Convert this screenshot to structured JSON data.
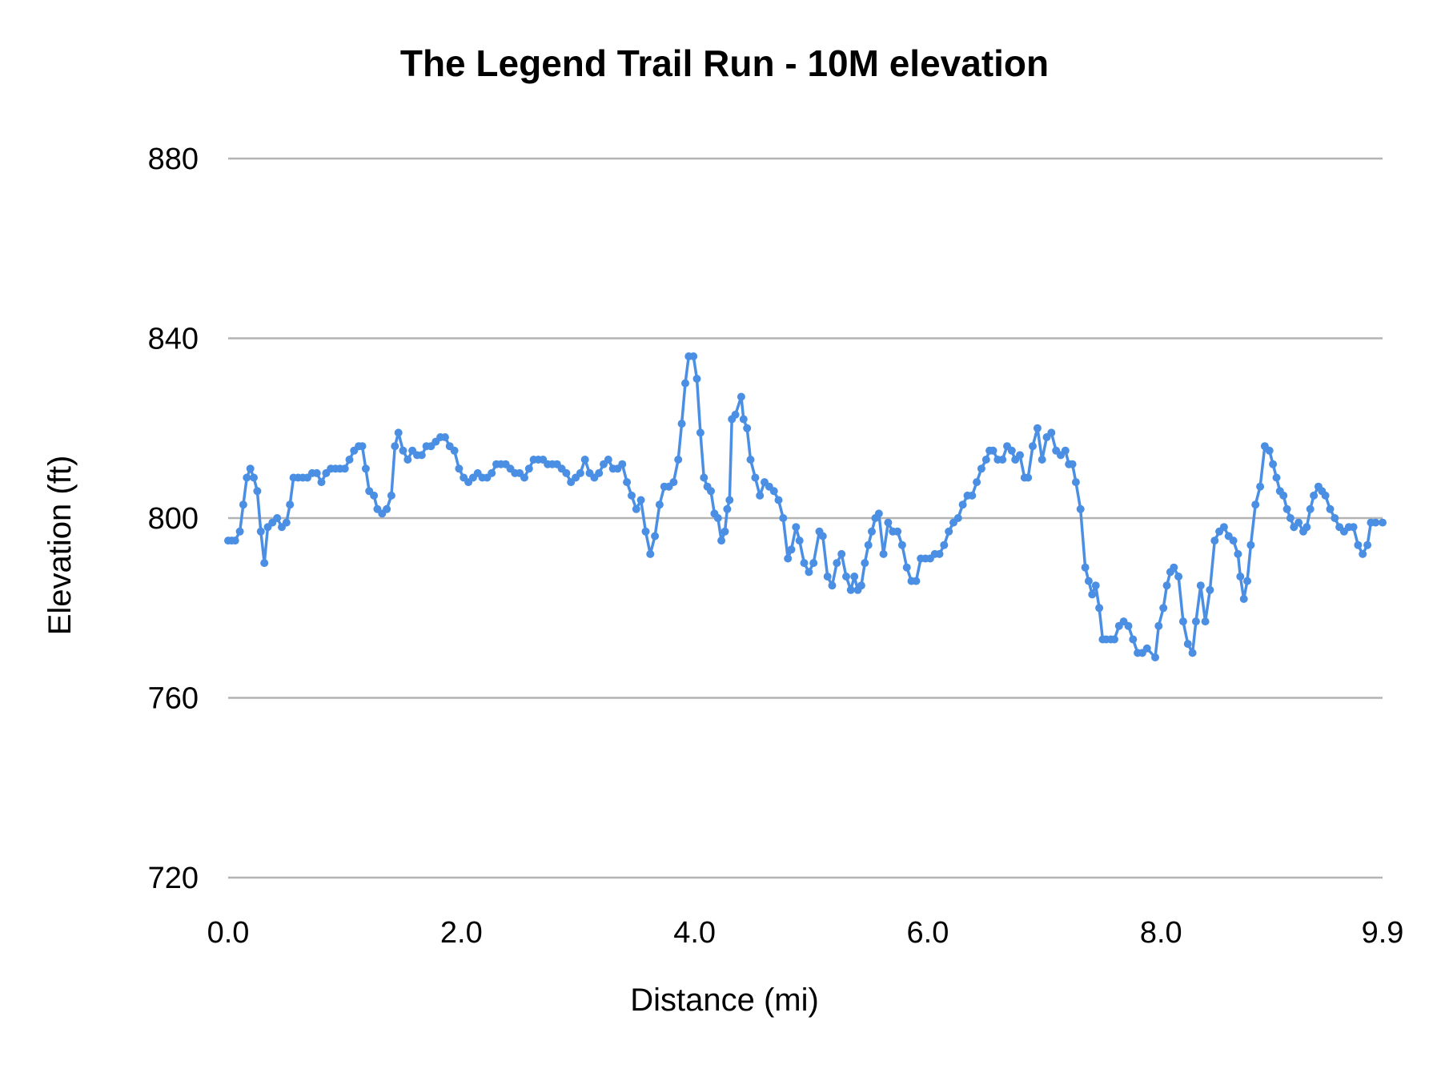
{
  "chart_data": {
    "type": "line",
    "title": "The Legend Trail Run - 10M elevation",
    "xlabel": "Distance (mi)",
    "ylabel": "Elevation (ft)",
    "xlim": [
      0.0,
      9.9
    ],
    "ylim": [
      720,
      880
    ],
    "x_ticks": [
      "0.0",
      "2.0",
      "4.0",
      "6.0",
      "8.0",
      "9.9"
    ],
    "x_tick_values": [
      0,
      2,
      4,
      6,
      8,
      9.9
    ],
    "y_ticks": [
      "880",
      "840",
      "800",
      "760",
      "720"
    ],
    "y_tick_values": [
      880,
      840,
      800,
      760,
      720
    ],
    "grid": "horizontal",
    "legend": "none",
    "markers": true,
    "series_color": "#4a8fe3",
    "grid_color": "#b3b3b3",
    "series": [
      {
        "points": [
          [
            0.0,
            795
          ],
          [
            0.03,
            795
          ],
          [
            0.06,
            795
          ],
          [
            0.1,
            797
          ],
          [
            0.13,
            803
          ],
          [
            0.16,
            809
          ],
          [
            0.19,
            811
          ],
          [
            0.22,
            809
          ],
          [
            0.25,
            806
          ],
          [
            0.28,
            797
          ],
          [
            0.31,
            790
          ],
          [
            0.34,
            798
          ],
          [
            0.38,
            799
          ],
          [
            0.42,
            800
          ],
          [
            0.46,
            798
          ],
          [
            0.5,
            799
          ],
          [
            0.53,
            803
          ],
          [
            0.56,
            809
          ],
          [
            0.6,
            809
          ],
          [
            0.64,
            809
          ],
          [
            0.68,
            809
          ],
          [
            0.72,
            810
          ],
          [
            0.76,
            810
          ],
          [
            0.8,
            808
          ],
          [
            0.84,
            810
          ],
          [
            0.88,
            811
          ],
          [
            0.92,
            811
          ],
          [
            0.96,
            811
          ],
          [
            1.0,
            811
          ],
          [
            1.04,
            813
          ],
          [
            1.08,
            815
          ],
          [
            1.12,
            816
          ],
          [
            1.15,
            816
          ],
          [
            1.18,
            811
          ],
          [
            1.21,
            806
          ],
          [
            1.25,
            805
          ],
          [
            1.28,
            802
          ],
          [
            1.32,
            801
          ],
          [
            1.36,
            802
          ],
          [
            1.4,
            805
          ],
          [
            1.43,
            816
          ],
          [
            1.46,
            819
          ],
          [
            1.5,
            815
          ],
          [
            1.54,
            813
          ],
          [
            1.58,
            815
          ],
          [
            1.62,
            814
          ],
          [
            1.66,
            814
          ],
          [
            1.7,
            816
          ],
          [
            1.74,
            816
          ],
          [
            1.78,
            817
          ],
          [
            1.82,
            818
          ],
          [
            1.86,
            818
          ],
          [
            1.9,
            816
          ],
          [
            1.94,
            815
          ],
          [
            1.98,
            811
          ],
          [
            2.02,
            809
          ],
          [
            2.06,
            808
          ],
          [
            2.1,
            809
          ],
          [
            2.14,
            810
          ],
          [
            2.18,
            809
          ],
          [
            2.22,
            809
          ],
          [
            2.26,
            810
          ],
          [
            2.3,
            812
          ],
          [
            2.34,
            812
          ],
          [
            2.38,
            812
          ],
          [
            2.42,
            811
          ],
          [
            2.46,
            810
          ],
          [
            2.5,
            810
          ],
          [
            2.54,
            809
          ],
          [
            2.58,
            811
          ],
          [
            2.62,
            813
          ],
          [
            2.66,
            813
          ],
          [
            2.7,
            813
          ],
          [
            2.74,
            812
          ],
          [
            2.78,
            812
          ],
          [
            2.82,
            812
          ],
          [
            2.86,
            811
          ],
          [
            2.9,
            810
          ],
          [
            2.94,
            808
          ],
          [
            2.98,
            809
          ],
          [
            3.02,
            810
          ],
          [
            3.06,
            813
          ],
          [
            3.1,
            810
          ],
          [
            3.14,
            809
          ],
          [
            3.18,
            810
          ],
          [
            3.22,
            812
          ],
          [
            3.26,
            813
          ],
          [
            3.3,
            811
          ],
          [
            3.34,
            811
          ],
          [
            3.38,
            812
          ],
          [
            3.42,
            808
          ],
          [
            3.46,
            805
          ],
          [
            3.5,
            802
          ],
          [
            3.54,
            804
          ],
          [
            3.58,
            797
          ],
          [
            3.62,
            792
          ],
          [
            3.66,
            796
          ],
          [
            3.7,
            803
          ],
          [
            3.74,
            807
          ],
          [
            3.78,
            807
          ],
          [
            3.82,
            808
          ],
          [
            3.86,
            813
          ],
          [
            3.89,
            821
          ],
          [
            3.92,
            830
          ],
          [
            3.95,
            836
          ],
          [
            3.99,
            836
          ],
          [
            4.02,
            831
          ],
          [
            4.05,
            819
          ],
          [
            4.08,
            809
          ],
          [
            4.11,
            807
          ],
          [
            4.14,
            806
          ],
          [
            4.17,
            801
          ],
          [
            4.2,
            800
          ],
          [
            4.23,
            795
          ],
          [
            4.26,
            797
          ],
          [
            4.28,
            802
          ],
          [
            4.3,
            804
          ],
          [
            4.32,
            822
          ],
          [
            4.35,
            823
          ],
          [
            4.4,
            827
          ],
          [
            4.42,
            822
          ],
          [
            4.45,
            820
          ],
          [
            4.48,
            813
          ],
          [
            4.52,
            809
          ],
          [
            4.56,
            805
          ],
          [
            4.6,
            808
          ],
          [
            4.64,
            807
          ],
          [
            4.68,
            806
          ],
          [
            4.72,
            804
          ],
          [
            4.76,
            800
          ],
          [
            4.8,
            791
          ],
          [
            4.83,
            793
          ],
          [
            4.87,
            798
          ],
          [
            4.9,
            795
          ],
          [
            4.94,
            790
          ],
          [
            4.98,
            788
          ],
          [
            5.02,
            790
          ],
          [
            5.07,
            797
          ],
          [
            5.1,
            796
          ],
          [
            5.14,
            787
          ],
          [
            5.18,
            785
          ],
          [
            5.22,
            790
          ],
          [
            5.26,
            792
          ],
          [
            5.3,
            787
          ],
          [
            5.34,
            784
          ],
          [
            5.37,
            787
          ],
          [
            5.4,
            784
          ],
          [
            5.43,
            785
          ],
          [
            5.46,
            790
          ],
          [
            5.49,
            794
          ],
          [
            5.52,
            797
          ],
          [
            5.55,
            800
          ],
          [
            5.58,
            801
          ],
          [
            5.62,
            792
          ],
          [
            5.66,
            799
          ],
          [
            5.7,
            797
          ],
          [
            5.74,
            797
          ],
          [
            5.78,
            794
          ],
          [
            5.82,
            789
          ],
          [
            5.86,
            786
          ],
          [
            5.9,
            786
          ],
          [
            5.94,
            791
          ],
          [
            5.98,
            791
          ],
          [
            6.02,
            791
          ],
          [
            6.06,
            792
          ],
          [
            6.1,
            792
          ],
          [
            6.14,
            794
          ],
          [
            6.18,
            797
          ],
          [
            6.22,
            799
          ],
          [
            6.26,
            800
          ],
          [
            6.3,
            803
          ],
          [
            6.34,
            805
          ],
          [
            6.38,
            805
          ],
          [
            6.42,
            808
          ],
          [
            6.46,
            811
          ],
          [
            6.5,
            813
          ],
          [
            6.53,
            815
          ],
          [
            6.56,
            815
          ],
          [
            6.6,
            813
          ],
          [
            6.64,
            813
          ],
          [
            6.68,
            816
          ],
          [
            6.72,
            815
          ],
          [
            6.75,
            813
          ],
          [
            6.79,
            814
          ],
          [
            6.83,
            809
          ],
          [
            6.86,
            809
          ],
          [
            6.9,
            816
          ],
          [
            6.94,
            820
          ],
          [
            6.98,
            813
          ],
          [
            7.02,
            818
          ],
          [
            7.06,
            819
          ],
          [
            7.1,
            815
          ],
          [
            7.14,
            814
          ],
          [
            7.18,
            815
          ],
          [
            7.21,
            812
          ],
          [
            7.24,
            812
          ],
          [
            7.27,
            808
          ],
          [
            7.31,
            802
          ],
          [
            7.35,
            789
          ],
          [
            7.38,
            786
          ],
          [
            7.41,
            783
          ],
          [
            7.44,
            785
          ],
          [
            7.47,
            780
          ],
          [
            7.5,
            773
          ],
          [
            7.53,
            773
          ],
          [
            7.57,
            773
          ],
          [
            7.6,
            773
          ],
          [
            7.64,
            776
          ],
          [
            7.68,
            777
          ],
          [
            7.72,
            776
          ],
          [
            7.76,
            773
          ],
          [
            7.8,
            770
          ],
          [
            7.84,
            770
          ],
          [
            7.88,
            771
          ],
          [
            7.95,
            769
          ],
          [
            7.98,
            776
          ],
          [
            8.02,
            780
          ],
          [
            8.05,
            785
          ],
          [
            8.08,
            788
          ],
          [
            8.11,
            789
          ],
          [
            8.15,
            787
          ],
          [
            8.19,
            777
          ],
          [
            8.23,
            772
          ],
          [
            8.27,
            770
          ],
          [
            8.3,
            777
          ],
          [
            8.34,
            785
          ],
          [
            8.38,
            777
          ],
          [
            8.42,
            784
          ],
          [
            8.46,
            795
          ],
          [
            8.5,
            797
          ],
          [
            8.54,
            798
          ],
          [
            8.58,
            796
          ],
          [
            8.62,
            795
          ],
          [
            8.66,
            792
          ],
          [
            8.68,
            787
          ],
          [
            8.71,
            782
          ],
          [
            8.74,
            786
          ],
          [
            8.77,
            794
          ],
          [
            8.81,
            803
          ],
          [
            8.85,
            807
          ],
          [
            8.89,
            816
          ],
          [
            8.93,
            815
          ],
          [
            8.96,
            812
          ],
          [
            8.99,
            809
          ],
          [
            9.02,
            806
          ],
          [
            9.05,
            805
          ],
          [
            9.08,
            802
          ],
          [
            9.11,
            800
          ],
          [
            9.14,
            798
          ],
          [
            9.18,
            799
          ],
          [
            9.22,
            797
          ],
          [
            9.25,
            798
          ],
          [
            9.28,
            802
          ],
          [
            9.31,
            805
          ],
          [
            9.35,
            807
          ],
          [
            9.38,
            806
          ],
          [
            9.41,
            805
          ],
          [
            9.45,
            802
          ],
          [
            9.49,
            800
          ],
          [
            9.53,
            798
          ],
          [
            9.57,
            797
          ],
          [
            9.61,
            798
          ],
          [
            9.65,
            798
          ],
          [
            9.69,
            794
          ],
          [
            9.73,
            792
          ],
          [
            9.77,
            794
          ],
          [
            9.8,
            799
          ],
          [
            9.84,
            799
          ],
          [
            9.9,
            799
          ]
        ]
      }
    ]
  }
}
